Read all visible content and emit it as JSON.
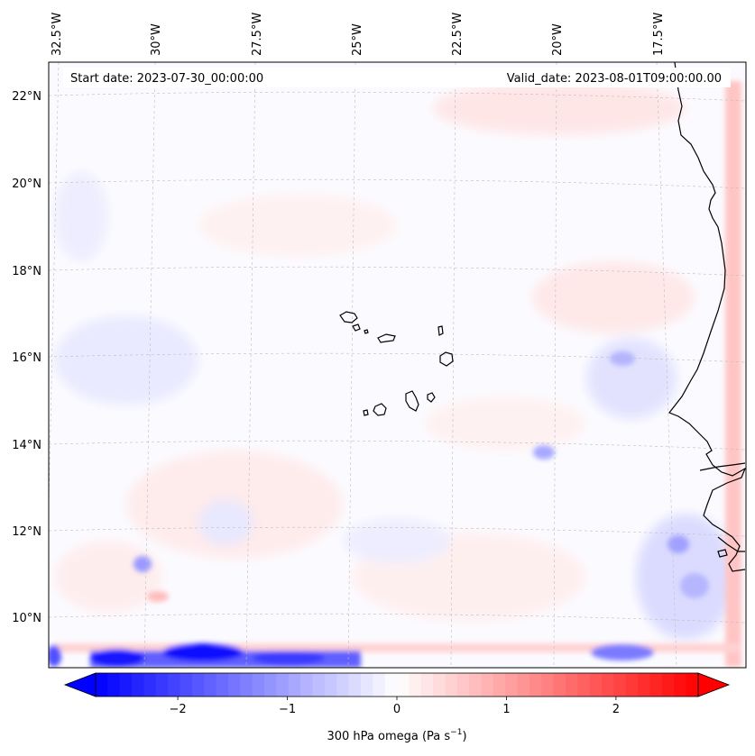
{
  "header": {
    "start_date": "Start date: 2023-07-30_00:00:00",
    "valid_date": "Valid_date: 2023-08-01T09:00:00.00"
  },
  "map": {
    "lon_labels": [
      "32.5°W",
      "30°W",
      "27.5°W",
      "25°W",
      "22.5°W",
      "20°W",
      "17.5°W"
    ],
    "lat_labels": [
      "22°N",
      "20°N",
      "18°N",
      "16°N",
      "14°N",
      "12°N",
      "10°N"
    ]
  },
  "colorbar": {
    "ticks": [
      "−2",
      "−1",
      "0",
      "1",
      "2"
    ],
    "tick_values": [
      -2,
      -1,
      0,
      1,
      2
    ],
    "range": [
      -2.75,
      2.75
    ],
    "label_prefix": "300 hPa omega (Pa s",
    "label_exp": "−1",
    "label_suffix": ")",
    "negative_color": "#0000ff",
    "zero_color": "#ffffff",
    "positive_color": "#ff0000"
  },
  "colors": {
    "grid": "#bdbdbd",
    "coast": "#000000"
  }
}
